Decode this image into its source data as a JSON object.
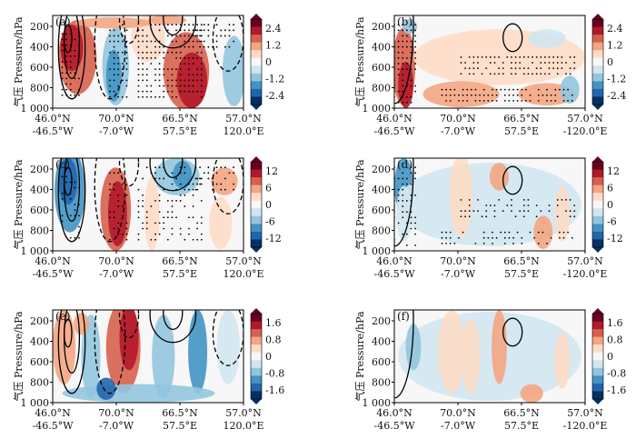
{
  "figure": {
    "ylabel": "气压 Pressure/hPa"
  },
  "chart_data": [
    {
      "type": "heatmap",
      "panel": "(a)",
      "ylabel": "气压 Pressure/hPa",
      "y_ticks": [
        "200",
        "400",
        "600",
        "800",
        "1 000"
      ],
      "x_ticks": [
        {
          "lat": "46.0°N",
          "lon": "-46.5°W"
        },
        {
          "lat": "70.0°N",
          "lon": "-7.0°W"
        },
        {
          "lat": "66.5°N",
          "lon": "57.5°E"
        },
        {
          "lat": "57.0°N",
          "lon": "120.0°E"
        }
      ],
      "colorbar": {
        "min": -2.4,
        "max": 2.4,
        "ticks": [
          "2.4",
          "1.2",
          "0",
          "-1.2",
          "-2.4"
        ]
      },
      "stippling": true,
      "contours": true
    },
    {
      "type": "heatmap",
      "panel": "(b)",
      "ylabel": "气压 Pressure/hPa",
      "y_ticks": [
        "200",
        "400",
        "600",
        "800",
        "1 000"
      ],
      "x_ticks": [
        {
          "lat": "46.0°N",
          "lon": "-46.5°W"
        },
        {
          "lat": "70.0°N",
          "lon": "-7.0°W"
        },
        {
          "lat": "66.5°N",
          "lon": "57.5°E"
        },
        {
          "lat": "57.0°N",
          "lon": "-120.0°E"
        }
      ],
      "colorbar": {
        "min": -2.4,
        "max": 2.4,
        "ticks": [
          "2.4",
          "1.2",
          "0",
          "-1.2",
          "-2.4"
        ]
      },
      "stippling": true,
      "contours": true
    },
    {
      "type": "heatmap",
      "panel": "(c)",
      "ylabel": "气压 Pressure/hPa",
      "y_ticks": [
        "200",
        "400",
        "600",
        "800",
        "1 000"
      ],
      "x_ticks": [
        {
          "lat": "46.0°N",
          "lon": "-46.5°W"
        },
        {
          "lat": "70.0°N",
          "lon": "-7.0°W"
        },
        {
          "lat": "66.5°N",
          "lon": "57.5°E"
        },
        {
          "lat": "57.0°N",
          "lon": "120.0°E"
        }
      ],
      "colorbar": {
        "min": -12,
        "max": 12,
        "ticks": [
          "12",
          "6",
          "0",
          "-6",
          "-12"
        ]
      },
      "stippling": true,
      "contours": true
    },
    {
      "type": "heatmap",
      "panel": "(d)",
      "ylabel": "气压 Pressure/hPa",
      "y_ticks": [
        "200",
        "400",
        "600",
        "800",
        "1 000"
      ],
      "x_ticks": [
        {
          "lat": "46.0°N",
          "lon": "-46.5°W"
        },
        {
          "lat": "70.0°N",
          "lon": "-7.0°W"
        },
        {
          "lat": "66.5°N",
          "lon": "57.5°E"
        },
        {
          "lat": "57.0°N",
          "lon": "-120.0°E"
        }
      ],
      "colorbar": {
        "min": -12,
        "max": 12,
        "ticks": [
          "12",
          "6",
          "0",
          "-6",
          "-12"
        ]
      },
      "stippling": true,
      "contours": true
    },
    {
      "type": "heatmap",
      "panel": "(e)",
      "ylabel": "气压 Pressure/hPa",
      "y_ticks": [
        "200",
        "400",
        "600",
        "800",
        "1 000"
      ],
      "x_ticks": [
        {
          "lat": "46.0°N",
          "lon": "-46.5°W"
        },
        {
          "lat": "70.0°N",
          "lon": "-7.0°W"
        },
        {
          "lat": "66.5°N",
          "lon": "57.5°E"
        },
        {
          "lat": "57.0°N",
          "lon": "120.0°E"
        }
      ],
      "colorbar": {
        "min": -1.6,
        "max": 1.6,
        "ticks": [
          "1.6",
          "0.8",
          "0",
          "-0.8",
          "-1.6"
        ]
      },
      "stippling": false,
      "contours": true
    },
    {
      "type": "heatmap",
      "panel": "(f)",
      "ylabel": "气压 Pressure/hPa",
      "y_ticks": [
        "200",
        "400",
        "600",
        "800",
        "1 000"
      ],
      "x_ticks": [
        {
          "lat": "46.0°N",
          "lon": "-46.5°W"
        },
        {
          "lat": "70.0°N",
          "lon": "-7.0°W"
        },
        {
          "lat": "66.5°N",
          "lon": "57.5°E"
        },
        {
          "lat": "57.0°N",
          "lon": "-120.0°E"
        }
      ],
      "colorbar": {
        "min": -1.6,
        "max": 1.6,
        "ticks": [
          "1.6",
          "0.8",
          "0",
          "-0.8",
          "-1.6"
        ]
      },
      "stippling": false,
      "contours": true
    }
  ],
  "colors": {
    "red_strong": "#b2182b",
    "red_mid": "#d6604d",
    "red_light": "#f4a582",
    "red_faint": "#fddbc7",
    "white": "#f7f7f7",
    "blue_faint": "#d1e5f0",
    "blue_light": "#92c5de",
    "blue_mid": "#4393c3",
    "blue_strong": "#2166ac",
    "blue_dark": "#053061",
    "red_dark": "#67001f"
  }
}
